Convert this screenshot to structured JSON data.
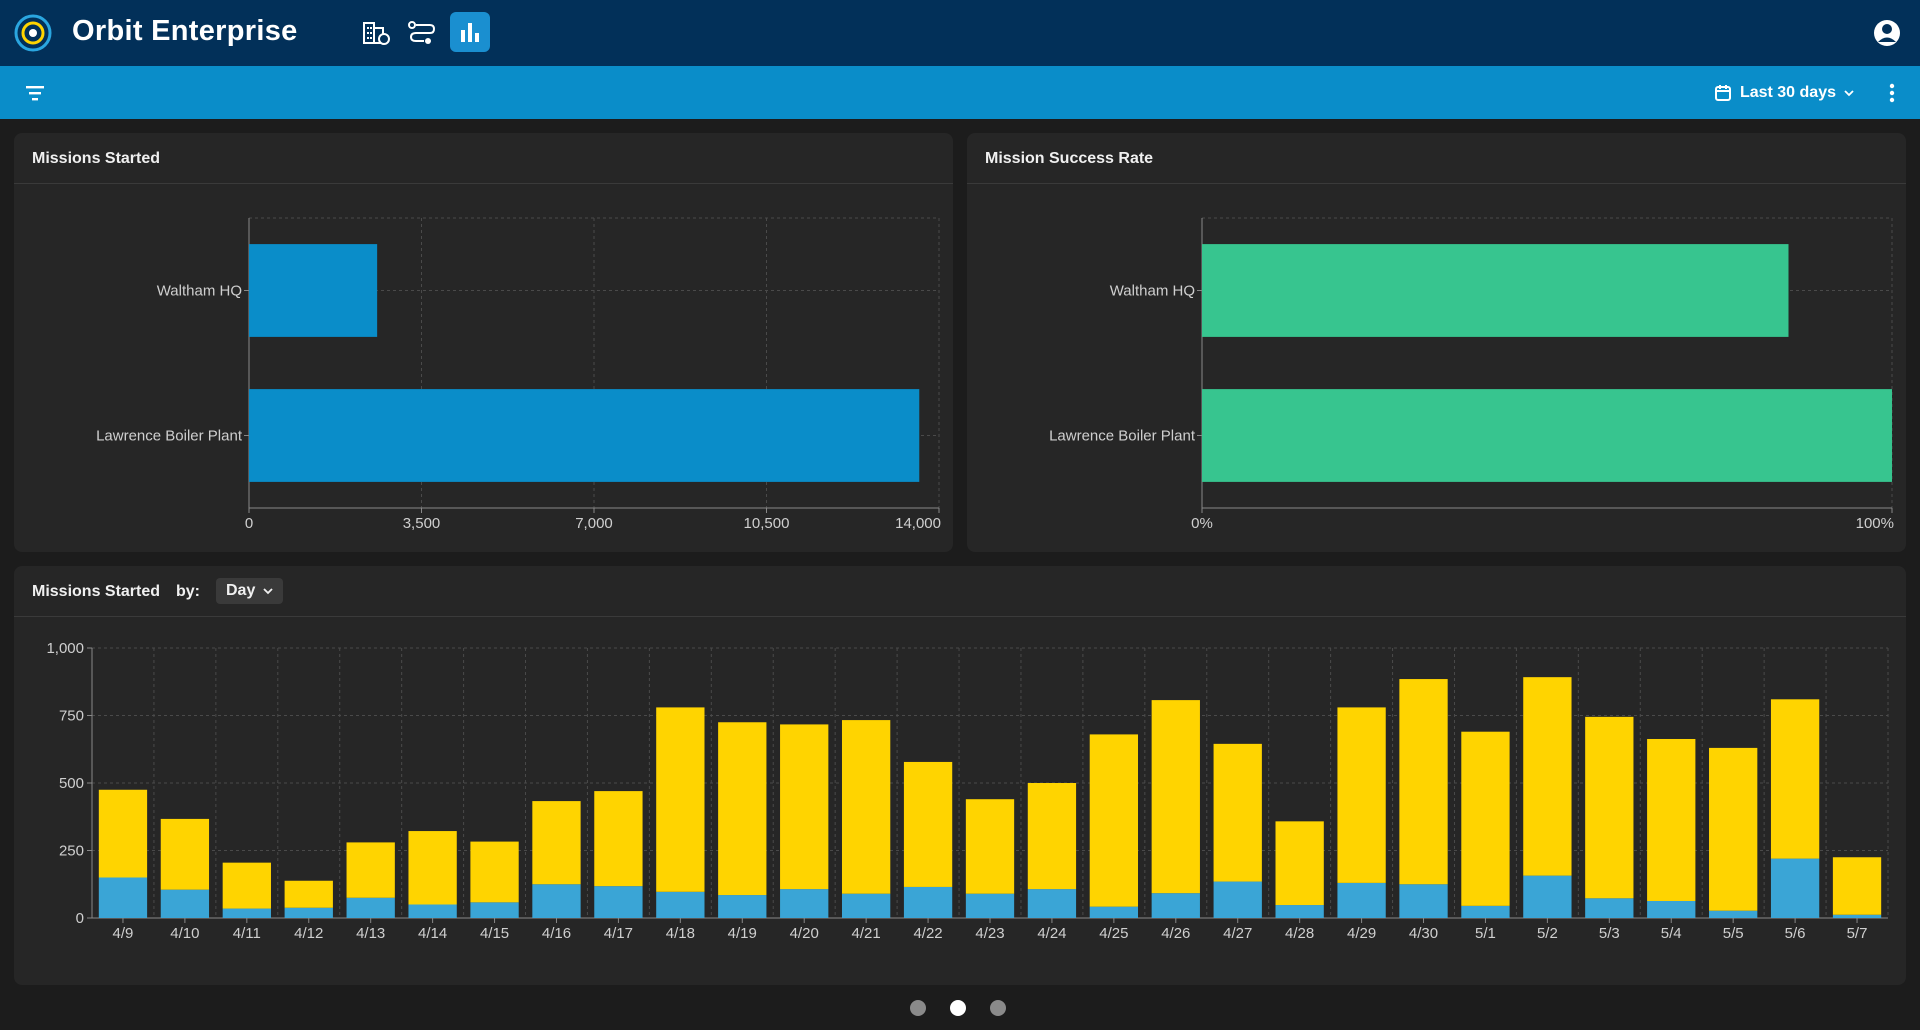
{
  "app": {
    "title": "Orbit Enterprise",
    "nav_icons": [
      "buildings-icon",
      "route-icon",
      "bar-chart-icon"
    ],
    "active_nav": "bar-chart-icon"
  },
  "toolbar": {
    "date_range_label": "Last 30 days"
  },
  "colors": {
    "topbar": "#023059",
    "toolbar": "#0a8dc9",
    "missions_bar": "#0a8dc9",
    "success_bar": "#37c58f",
    "stack_bottom": "#3aa5d6",
    "stack_top": "#ffd400"
  },
  "panels": {
    "missions_started_title": "Missions Started",
    "success_rate_title": "Mission Success Rate",
    "daily_title": "Missions Started",
    "daily_by_label": "by:",
    "daily_by_value": "Day"
  },
  "chart_data": [
    {
      "type": "bar",
      "orientation": "horizontal",
      "title": "Missions Started",
      "categories": [
        "Waltham HQ",
        "Lawrence Boiler Plant"
      ],
      "values": [
        2600,
        13600
      ],
      "xlim": [
        0,
        14000
      ],
      "xticks": [
        "0",
        "3,500",
        "7,000",
        "10,500",
        "14,000"
      ],
      "grid": true
    },
    {
      "type": "bar",
      "orientation": "horizontal",
      "title": "Mission Success Rate",
      "categories": [
        "Waltham HQ",
        "Lawrence Boiler Plant"
      ],
      "values": [
        85,
        100
      ],
      "xlim": [
        0,
        100
      ],
      "xticks": [
        "0%",
        "100%"
      ],
      "grid": true
    },
    {
      "type": "bar",
      "stacked": true,
      "title": "Missions Started",
      "categories": [
        "4/9",
        "4/10",
        "4/11",
        "4/12",
        "4/13",
        "4/14",
        "4/15",
        "4/16",
        "4/17",
        "4/18",
        "4/19",
        "4/20",
        "4/21",
        "4/22",
        "4/23",
        "4/24",
        "4/25",
        "4/26",
        "4/27",
        "4/28",
        "4/29",
        "4/30",
        "5/1",
        "5/2",
        "5/3",
        "5/4",
        "5/5",
        "5/6",
        "5/7"
      ],
      "series": [
        {
          "values": [
            150,
            105,
            35,
            38,
            75,
            50,
            58,
            125,
            118,
            97,
            85,
            107,
            90,
            115,
            90,
            107,
            42,
            92,
            135,
            48,
            130,
            125,
            45,
            157,
            73,
            63,
            27,
            220,
            12
          ]
        },
        {
          "values": [
            325,
            262,
            170,
            100,
            205,
            272,
            225,
            308,
            352,
            683,
            640,
            610,
            643,
            463,
            350,
            393,
            638,
            715,
            510,
            310,
            650,
            760,
            645,
            735,
            672,
            600,
            603,
            590,
            213
          ]
        }
      ],
      "ylim": [
        0,
        1000
      ],
      "yticks": [
        "0",
        "250",
        "500",
        "750",
        "1,000"
      ],
      "grid": true
    }
  ]
}
